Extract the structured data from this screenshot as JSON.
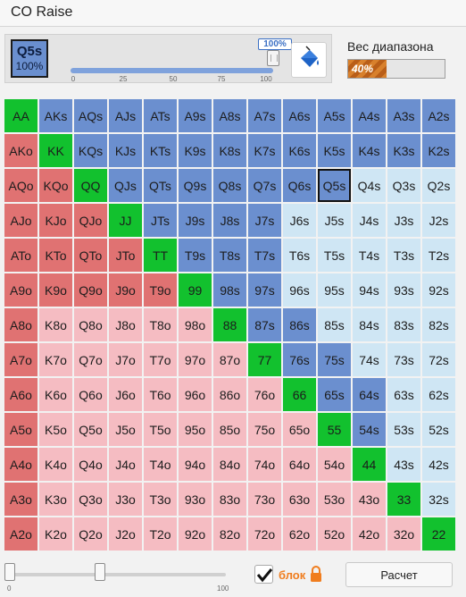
{
  "app": {
    "title": "CO Raise"
  },
  "selected_hand": {
    "hand": "Q5s",
    "percent": "100%"
  },
  "frequency_slider": {
    "value_label": "100%",
    "value": 100,
    "ticks": [
      "0",
      "25",
      "50",
      "75",
      "100"
    ]
  },
  "range_weight": {
    "label": "Вес диапазона",
    "percent_label": "40%",
    "value": 40
  },
  "bottom_slider": {
    "min_label": "0",
    "max_label": "100",
    "handle_values": [
      0,
      42
    ]
  },
  "lock": {
    "label": "блок",
    "checked": true
  },
  "calc_button": {
    "label": "Расчет"
  },
  "colors": {
    "pair": "#12c12e",
    "suited_selected": "#6b8fcf",
    "suited": "#cfe6f4",
    "offsuit_selected": "#e07272",
    "offsuit": "#f5bcc2",
    "orange_accent": "#f07d1e"
  },
  "icons": {
    "bucket": "paint-bucket-icon",
    "lock": "lock-icon",
    "check": "checkmark-icon"
  },
  "grid": {
    "rows": [
      [
        "AA",
        "AKs",
        "AQs",
        "AJs",
        "ATs",
        "A9s",
        "A8s",
        "A7s",
        "A6s",
        "A5s",
        "A4s",
        "A3s",
        "A2s"
      ],
      [
        "AKo",
        "KK",
        "KQs",
        "KJs",
        "KTs",
        "K9s",
        "K8s",
        "K7s",
        "K6s",
        "K5s",
        "K4s",
        "K3s",
        "K2s"
      ],
      [
        "AQo",
        "KQo",
        "QQ",
        "QJs",
        "QTs",
        "Q9s",
        "Q8s",
        "Q7s",
        "Q6s",
        "Q5s",
        "Q4s",
        "Q3s",
        "Q2s"
      ],
      [
        "AJo",
        "KJo",
        "QJo",
        "JJ",
        "JTs",
        "J9s",
        "J8s",
        "J7s",
        "J6s",
        "J5s",
        "J4s",
        "J3s",
        "J2s"
      ],
      [
        "ATo",
        "KTo",
        "QTo",
        "JTo",
        "TT",
        "T9s",
        "T8s",
        "T7s",
        "T6s",
        "T5s",
        "T4s",
        "T3s",
        "T2s"
      ],
      [
        "A9o",
        "K9o",
        "Q9o",
        "J9o",
        "T9o",
        "99",
        "98s",
        "97s",
        "96s",
        "95s",
        "94s",
        "93s",
        "92s"
      ],
      [
        "A8o",
        "K8o",
        "Q8o",
        "J8o",
        "T8o",
        "98o",
        "88",
        "87s",
        "86s",
        "85s",
        "84s",
        "83s",
        "82s"
      ],
      [
        "A7o",
        "K7o",
        "Q7o",
        "J7o",
        "T7o",
        "97o",
        "87o",
        "77",
        "76s",
        "75s",
        "74s",
        "73s",
        "72s"
      ],
      [
        "A6o",
        "K6o",
        "Q6o",
        "J6o",
        "T6o",
        "96o",
        "86o",
        "76o",
        "66",
        "65s",
        "64s",
        "63s",
        "62s"
      ],
      [
        "A5o",
        "K5o",
        "Q5o",
        "J5o",
        "T5o",
        "95o",
        "85o",
        "75o",
        "65o",
        "55",
        "54s",
        "53s",
        "52s"
      ],
      [
        "A4o",
        "K4o",
        "Q4o",
        "J4o",
        "T4o",
        "94o",
        "84o",
        "74o",
        "64o",
        "54o",
        "44",
        "43s",
        "42s"
      ],
      [
        "A3o",
        "K3o",
        "Q3o",
        "J3o",
        "T3o",
        "93o",
        "83o",
        "73o",
        "63o",
        "53o",
        "43o",
        "33",
        "32s"
      ],
      [
        "A2o",
        "K2o",
        "Q2o",
        "J2o",
        "T2o",
        "92o",
        "82o",
        "72o",
        "62o",
        "52o",
        "42o",
        "32o",
        "22"
      ]
    ],
    "suited_selected": [
      "AKs",
      "AQs",
      "AJs",
      "ATs",
      "A9s",
      "A8s",
      "A7s",
      "A6s",
      "A5s",
      "A4s",
      "A3s",
      "A2s",
      "KQs",
      "KJs",
      "KTs",
      "K9s",
      "K8s",
      "K7s",
      "K6s",
      "K5s",
      "K4s",
      "K3s",
      "K2s",
      "QJs",
      "QTs",
      "Q9s",
      "Q8s",
      "Q7s",
      "Q6s",
      "Q5s",
      "JTs",
      "J9s",
      "J8s",
      "J7s",
      "T9s",
      "T8s",
      "T7s",
      "98s",
      "97s",
      "87s",
      "86s",
      "76s",
      "75s",
      "65s",
      "64s",
      "54s"
    ],
    "offsuit_selected": [
      "AKo",
      "AQo",
      "KQo",
      "AJo",
      "KJo",
      "QJo",
      "ATo",
      "KTo",
      "QTo",
      "JTo",
      "A9o",
      "K9o",
      "Q9o",
      "J9o",
      "T9o",
      "A8o",
      "A7o",
      "A6o",
      "A5o",
      "A4o",
      "A3o",
      "A2o"
    ],
    "active": "Q5s"
  }
}
